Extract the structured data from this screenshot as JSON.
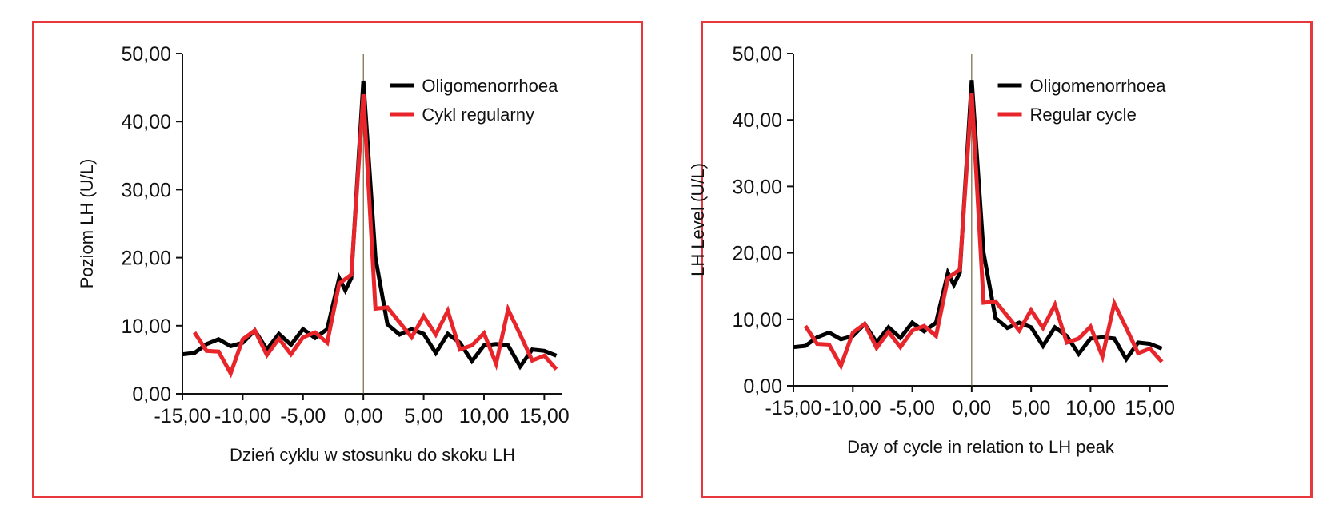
{
  "chart_data": [
    {
      "type": "line",
      "xlabel": "Dzień cyklu w stosunku do skoku LH",
      "ylabel": "Poziom LH (U/L)",
      "xlim": [
        -15,
        16.5
      ],
      "ylim": [
        0,
        50
      ],
      "x_ticks": [
        -15,
        -10,
        -5,
        0,
        5,
        10,
        15
      ],
      "x_tick_labels": [
        "-15,00",
        "-10,00",
        "-5,00",
        "0,00",
        "5,00",
        "10,00",
        "15,00"
      ],
      "y_ticks": [
        0,
        10,
        20,
        30,
        40,
        50
      ],
      "y_tick_labels": [
        "0,00",
        "10,00",
        "20,00",
        "30,00",
        "40,00",
        "50,00"
      ],
      "grid": false,
      "legend_position": "top-right",
      "series": [
        {
          "name": "Oligomenorrhoea",
          "color": "#000000",
          "x": [
            -15,
            -14,
            -13,
            -12,
            -11,
            -10,
            -9,
            -8,
            -7,
            -6,
            -5,
            -4,
            -3,
            -2,
            -1.5,
            -1,
            0,
            1,
            2,
            3,
            4,
            5,
            6,
            7,
            8,
            9,
            10,
            11,
            12,
            13,
            14,
            15,
            16
          ],
          "values": [
            5.8,
            6,
            7.3,
            8,
            7,
            7.5,
            9.3,
            6.5,
            8.8,
            7.2,
            9.5,
            8.2,
            9.5,
            17,
            15.2,
            17,
            46,
            20,
            10.2,
            8.7,
            9.5,
            8.8,
            6,
            8.8,
            7.5,
            4.8,
            7.1,
            7.3,
            7.1,
            4,
            6.5,
            6.3,
            5.6
          ]
        },
        {
          "name": "Cykl regularny",
          "color": "#e8252b",
          "x": [
            -14,
            -13,
            -12,
            -11,
            -10,
            -9,
            -8,
            -7,
            -6,
            -5,
            -4,
            -3,
            -2,
            -1,
            0,
            1,
            2,
            3,
            4,
            5,
            6,
            7,
            8,
            9,
            10,
            11,
            12,
            13,
            14,
            15,
            16
          ],
          "values": [
            9,
            6.3,
            6.2,
            3,
            8,
            9.3,
            5.7,
            8.1,
            5.8,
            8.3,
            9,
            7.5,
            16.2,
            17.5,
            44,
            12.5,
            12.7,
            10.5,
            8.3,
            11.4,
            8.7,
            12.2,
            6.5,
            7.1,
            8.9,
            4.4,
            12.4,
            8.7,
            4.9,
            5.6,
            3.6
          ]
        }
      ]
    },
    {
      "type": "line",
      "xlabel": "Day of cycle in relation to LH peak",
      "ylabel": "LH Level (U/L)",
      "xlim": [
        -15,
        16.5
      ],
      "ylim": [
        0,
        50
      ],
      "x_ticks": [
        -15,
        -10,
        -5,
        0,
        5,
        10,
        15
      ],
      "x_tick_labels": [
        "-15,00",
        "-10,00",
        "-5,00",
        "0,00",
        "5,00",
        "10,00",
        "15,00"
      ],
      "y_ticks": [
        0,
        10,
        20,
        30,
        40,
        50
      ],
      "y_tick_labels": [
        "0,00",
        "10,00",
        "20,00",
        "30,00",
        "40,00",
        "50,00"
      ],
      "grid": false,
      "legend_position": "top-right",
      "series": [
        {
          "name": "Oligomenorrhoea",
          "color": "#000000",
          "x": [
            -15,
            -14,
            -13,
            -12,
            -11,
            -10,
            -9,
            -8,
            -7,
            -6,
            -5,
            -4,
            -3,
            -2,
            -1.5,
            -1,
            0,
            1,
            2,
            3,
            4,
            5,
            6,
            7,
            8,
            9,
            10,
            11,
            12,
            13,
            14,
            15,
            16
          ],
          "values": [
            5.8,
            6,
            7.3,
            8,
            7,
            7.5,
            9.3,
            6.5,
            8.8,
            7.2,
            9.5,
            8.2,
            9.5,
            17,
            15.2,
            17,
            46,
            20,
            10.2,
            8.7,
            9.5,
            8.8,
            6,
            8.8,
            7.5,
            4.8,
            7.1,
            7.3,
            7.1,
            4,
            6.5,
            6.3,
            5.6
          ]
        },
        {
          "name": "Regular cycle",
          "color": "#e8252b",
          "x": [
            -14,
            -13,
            -12,
            -11,
            -10,
            -9,
            -8,
            -7,
            -6,
            -5,
            -4,
            -3,
            -2,
            -1,
            0,
            1,
            2,
            3,
            4,
            5,
            6,
            7,
            8,
            9,
            10,
            11,
            12,
            13,
            14,
            15,
            16
          ],
          "values": [
            9,
            6.3,
            6.2,
            3,
            8,
            9.3,
            5.7,
            8.1,
            5.8,
            8.3,
            9,
            7.5,
            16.2,
            17.5,
            44,
            12.5,
            12.7,
            10.5,
            8.3,
            11.4,
            8.7,
            12.2,
            6.5,
            7.1,
            8.9,
            4.4,
            12.4,
            8.7,
            4.9,
            5.6,
            3.6
          ]
        }
      ]
    }
  ]
}
